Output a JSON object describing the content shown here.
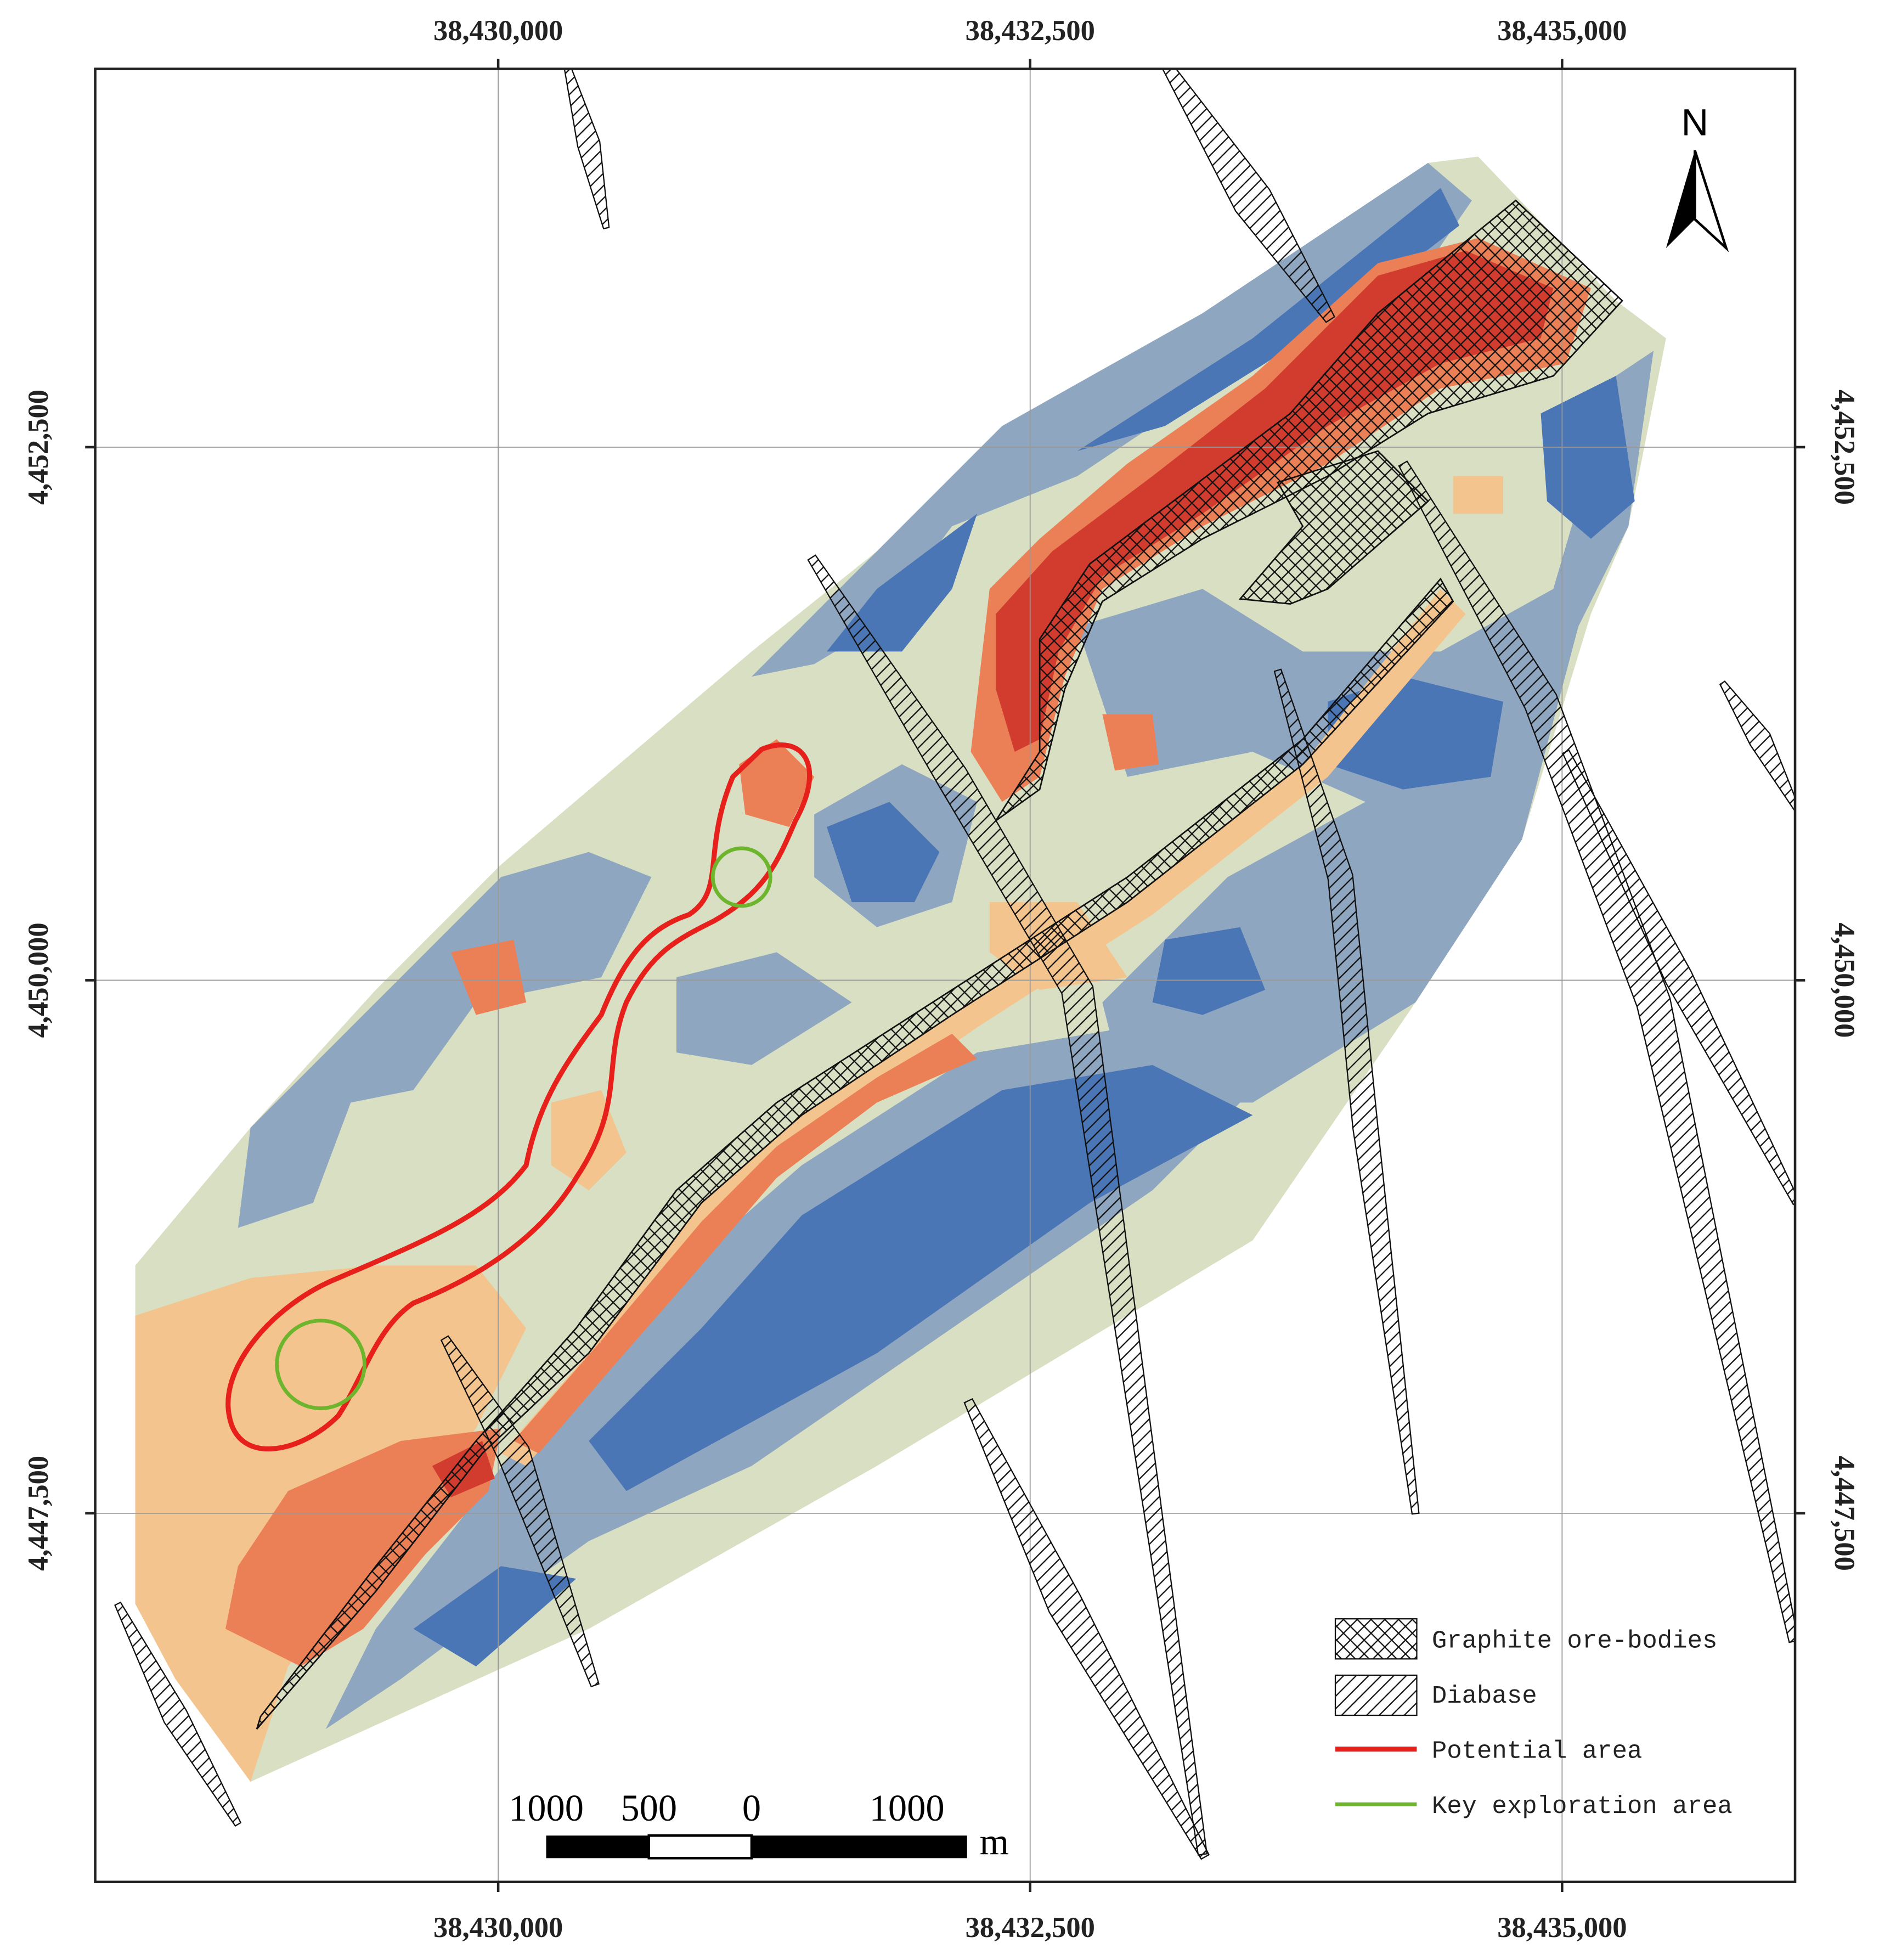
{
  "map": {
    "xlim": [
      38428106,
      38436095
    ],
    "ylim": [
      4445771,
      4454274
    ],
    "xticks": [
      {
        "value": 38430000,
        "label": "38,430,000"
      },
      {
        "value": 38432500,
        "label": "38,432,500"
      },
      {
        "value": 38435000,
        "label": "38,435,000"
      }
    ],
    "yticks": [
      {
        "value": 4452500,
        "label": "4,452,500"
      },
      {
        "value": 4450000,
        "label": "4,450,000"
      },
      {
        "value": 4447500,
        "label": "4,447,500"
      }
    ],
    "grid": true,
    "north": "N",
    "legend": [
      "Graphite ore-bodies",
      "Diabase",
      "Potential area",
      "Key exploration area"
    ],
    "scale_bar": {
      "labels": [
        1000,
        500,
        0,
        1000
      ],
      "unit": "m"
    }
  }
}
